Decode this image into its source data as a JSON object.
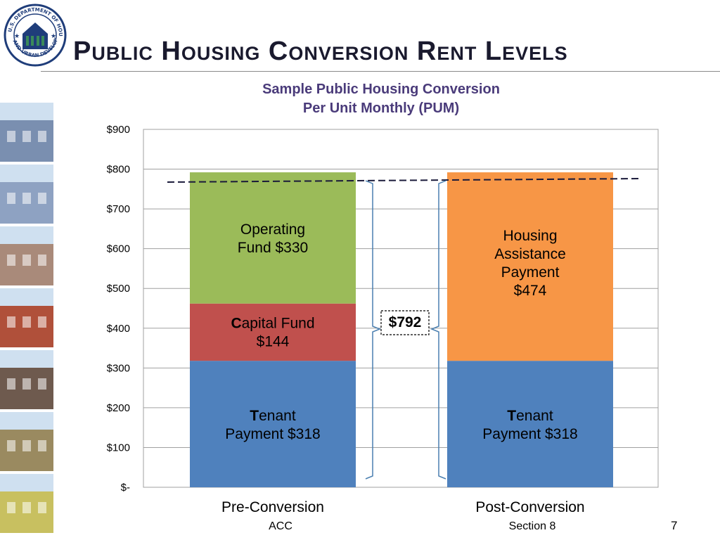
{
  "slide": {
    "title": "Public Housing Conversion Rent Levels",
    "page_number": "7"
  },
  "seal": {
    "text": "U.S. DEPARTMENT OF HOUSING AND URBAN DEVELOPMENT",
    "icon": "hud-seal-icon",
    "color": "#1f3d7a"
  },
  "photos": [
    {
      "name": "townhouse-photo",
      "color": "#7a8fb0"
    },
    {
      "name": "city-skyline-photo",
      "color": "#8ea2c2"
    },
    {
      "name": "house-with-tree-photo",
      "color": "#a98a7a"
    },
    {
      "name": "brick-apartments-photo",
      "color": "#b0503a"
    },
    {
      "name": "family-photo",
      "color": "#6e5a4e"
    },
    {
      "name": "construction-photo",
      "color": "#9a8a60"
    },
    {
      "name": "colorful-buildings-photo",
      "color": "#c8c060"
    }
  ],
  "chart_data": {
    "type": "bar",
    "stacked": true,
    "title_lines": [
      "Sample Public Housing Conversion",
      "Per Unit Monthly (PUM)"
    ],
    "ylim": [
      0,
      900
    ],
    "y_ticks": [
      0,
      100,
      200,
      300,
      400,
      500,
      600,
      700,
      800,
      900
    ],
    "y_tick_labels": [
      "$-",
      "$100",
      "$200",
      "$300",
      "$400",
      "$500",
      "$600",
      "$700",
      "$800",
      "$900"
    ],
    "grid": true,
    "categories": [
      "Pre-Conversion",
      "Post-Conversion"
    ],
    "sub_labels": [
      "ACC",
      "Section 8"
    ],
    "stacks": [
      [
        {
          "name": "Tenant Payment",
          "value": 318,
          "color": "#4f81bd",
          "label_lines": [
            "Tenant",
            "Payment  $318"
          ],
          "lead_letter": true
        },
        {
          "name": "Capital Fund",
          "value": 144,
          "color": "#c0504d",
          "label_lines": [
            "Capital Fund",
            "$144"
          ],
          "lead_letter": true
        },
        {
          "name": "Operating Fund",
          "value": 330,
          "color": "#9bbb59",
          "label_lines": [
            "Operating",
            "Fund  $330"
          ],
          "lead_letter": false
        }
      ],
      [
        {
          "name": "Tenant Payment",
          "value": 318,
          "color": "#4f81bd",
          "label_lines": [
            "Tenant",
            "Payment  $318"
          ],
          "lead_letter": true
        },
        {
          "name": "Housing Assistance Payment",
          "value": 474,
          "color": "#f79646",
          "label_lines": [
            "Housing",
            "Assistance",
            "Payment",
            "$474"
          ],
          "lead_letter": false
        }
      ]
    ],
    "total_label": "$792",
    "total_value": 792,
    "reference_line": 792
  }
}
